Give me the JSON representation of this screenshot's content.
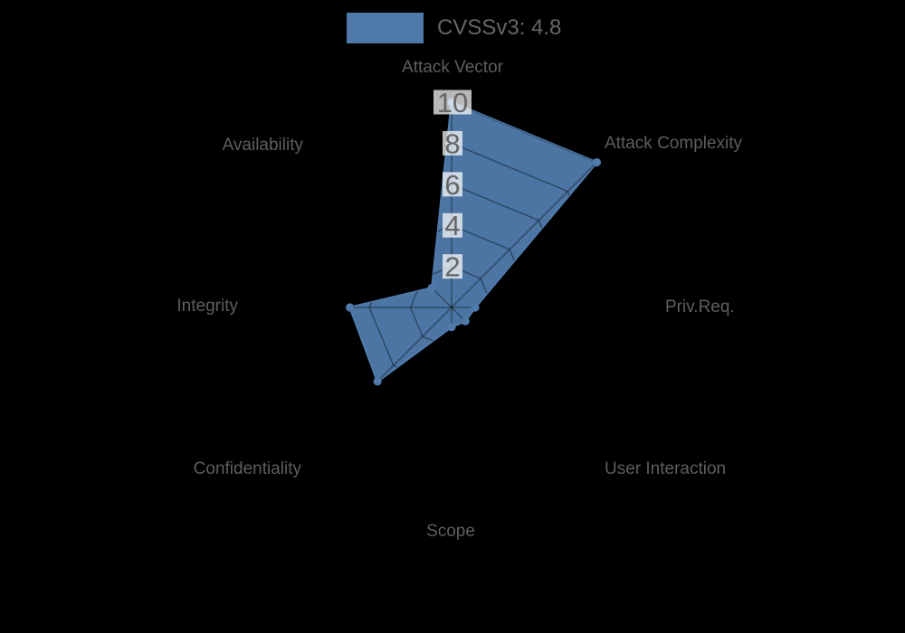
{
  "page": {
    "background_color": "#000000"
  },
  "legend": {
    "label": "CVSSv3: 4.8",
    "swatch_color": "#4e79a8"
  },
  "chart_data": {
    "type": "radar",
    "title": "CVSSv3: 4.8",
    "axes": [
      "Attack Vector",
      "Attack Complexity",
      "Priv.Req.",
      "User Interaction",
      "Scope",
      "Confidentiality",
      "Integrity",
      "Availability"
    ],
    "series": [
      {
        "name": "CVSSv3: 4.8",
        "values": [
          10,
          10,
          1.15,
          0.95,
          0.95,
          5.1,
          4.95,
          1.35
        ],
        "fill_color": "#4e79a8",
        "point_color": "#4e79a8"
      }
    ],
    "ticks": [
      2,
      4,
      6,
      8,
      10
    ],
    "rlim": [
      0,
      10
    ],
    "start_axis": "top",
    "direction": "clockwise",
    "grid_visible": "only over filled polygon",
    "grid_color": "rgba(0,0,0,0.38)",
    "tick_text_color": "#666666",
    "tick_backdrop_color": "rgba(255,255,255,0.72)",
    "axis_label_color": "#5e5e5e",
    "legend_position": "top-center"
  }
}
